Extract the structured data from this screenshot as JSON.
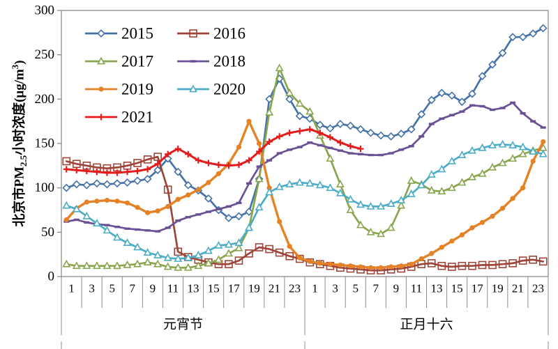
{
  "y_axis": {
    "title_parts": {
      "p1": "北京市PM",
      "sub": "2.5",
      "p2": "小时浓度(μg/m",
      "sup": "3",
      "p3": ")"
    },
    "ticks": [
      0,
      50,
      100,
      150,
      200,
      250,
      300
    ]
  },
  "x_axis": {
    "hour_tick_labels": [
      "1",
      "3",
      "5",
      "7",
      "9",
      "11",
      "13",
      "15",
      "17",
      "19",
      "21",
      "23"
    ],
    "day_labels": [
      "元宵节",
      "正月十六"
    ]
  },
  "legend": {
    "items": [
      {
        "label": "2015",
        "color": "#4572A7",
        "marker": "diamond"
      },
      {
        "label": "2016",
        "color": "#9E4438",
        "marker": "square"
      },
      {
        "label": "2017",
        "color": "#89A54E",
        "marker": "triangle"
      },
      {
        "label": "2018",
        "color": "#6A5195",
        "marker": "dash"
      },
      {
        "label": "2019",
        "color": "#E58225",
        "marker": "circle"
      },
      {
        "label": "2020",
        "color": "#4BACC6",
        "marker": "triangle"
      },
      {
        "label": "2021",
        "color": "#E31B1B",
        "marker": "plus"
      }
    ]
  },
  "chart_data": {
    "type": "line",
    "title": "",
    "ylabel": "北京市PM2.5小时浓度(μg/m³)",
    "ylim": [
      0,
      300
    ],
    "yticks": [
      0,
      50,
      100,
      150,
      200,
      250,
      300
    ],
    "grid": false,
    "legend_position": "upper-left-inside",
    "x_groups": [
      {
        "label": "元宵节",
        "hours": [
          1,
          2,
          3,
          4,
          5,
          6,
          7,
          8,
          9,
          10,
          11,
          12,
          13,
          14,
          15,
          16,
          17,
          18,
          19,
          20,
          21,
          22,
          23,
          24
        ]
      },
      {
        "label": "正月十六",
        "hours": [
          1,
          2,
          3,
          4,
          5,
          6,
          7,
          8,
          9,
          10,
          11,
          12,
          13,
          14,
          15,
          16,
          17,
          18,
          19,
          20,
          21,
          22,
          23,
          24
        ]
      }
    ],
    "series": [
      {
        "name": "2015",
        "color": "#4572A7",
        "marker": "diamond",
        "line_width": 2.7,
        "values": [
          100,
          104,
          103,
          105,
          104,
          105,
          106,
          108,
          110,
          120,
          133,
          118,
          103,
          97,
          88,
          75,
          66,
          68,
          73,
          110,
          200,
          223,
          200,
          181,
          178,
          171,
          167,
          172,
          170,
          166,
          162,
          159,
          158,
          161,
          166,
          183,
          199,
          207,
          204,
          197,
          206,
          226,
          239,
          252,
          270,
          270,
          274,
          280
        ]
      },
      {
        "name": "2016",
        "color": "#9E4438",
        "marker": "square",
        "line_width": 2.7,
        "values": [
          130,
          127,
          125,
          123,
          122,
          123,
          125,
          128,
          132,
          135,
          98,
          28,
          22,
          19,
          16,
          14,
          14,
          18,
          26,
          33,
          31,
          27,
          23,
          20,
          16,
          14,
          12,
          10,
          9,
          8,
          7,
          7,
          8,
          9,
          11,
          14,
          15,
          12,
          11,
          12,
          12,
          13,
          13,
          14,
          15,
          18,
          19,
          17
        ]
      },
      {
        "name": "2017",
        "color": "#89A54E",
        "marker": "triangle",
        "line_width": 2.7,
        "values": [
          14,
          12,
          12,
          12,
          12,
          12,
          13,
          14,
          16,
          14,
          11,
          10,
          10,
          12,
          15,
          19,
          26,
          32,
          55,
          110,
          185,
          235,
          207,
          195,
          186,
          159,
          133,
          104,
          75,
          58,
          50,
          48,
          55,
          80,
          108,
          104,
          97,
          96,
          100,
          106,
          112,
          116,
          123,
          128,
          133,
          138,
          142,
          145
        ]
      },
      {
        "name": "2018",
        "color": "#6A5195",
        "marker": "dash",
        "line_width": 2.7,
        "values": [
          62,
          64,
          61,
          59,
          58,
          56,
          54,
          53,
          52,
          51,
          55,
          63,
          67,
          70,
          73,
          76,
          79,
          83,
          105,
          124,
          131,
          139,
          143,
          146,
          151,
          148,
          145,
          142,
          139,
          138,
          137,
          137,
          139,
          143,
          147,
          158,
          172,
          178,
          182,
          186,
          193,
          192,
          188,
          190,
          196,
          184,
          175,
          168
        ]
      },
      {
        "name": "2019",
        "color": "#E58225",
        "marker": "circle",
        "line_width": 3.4,
        "values": [
          64,
          77,
          84,
          85,
          86,
          85,
          83,
          78,
          72,
          74,
          79,
          87,
          92,
          98,
          106,
          116,
          127,
          146,
          175,
          150,
          100,
          62,
          34,
          21,
          17,
          15,
          14,
          13,
          12,
          11,
          10,
          10,
          11,
          12,
          14,
          20,
          26,
          33,
          40,
          47,
          55,
          61,
          68,
          77,
          88,
          100,
          130,
          152
        ]
      },
      {
        "name": "2020",
        "color": "#4BACC6",
        "marker": "triangle",
        "line_width": 2.7,
        "values": [
          80,
          76,
          68,
          60,
          52,
          44,
          38,
          33,
          27,
          24,
          21,
          20,
          21,
          24,
          29,
          35,
          36,
          38,
          55,
          78,
          95,
          101,
          104,
          106,
          105,
          103,
          100,
          94,
          87,
          81,
          79,
          79,
          82,
          86,
          93,
          103,
          115,
          121,
          130,
          137,
          142,
          145,
          148,
          149,
          148,
          146,
          141,
          138
        ]
      },
      {
        "name": "2021",
        "color": "#E31B1B",
        "marker": "plus",
        "line_width": 3.0,
        "values": [
          121,
          120,
          119,
          118,
          117,
          117,
          118,
          119,
          121,
          127,
          138,
          144,
          138,
          131,
          128,
          126,
          125,
          126,
          131,
          141,
          152,
          158,
          162,
          164,
          166,
          162,
          157,
          151,
          147,
          144,
          null,
          null,
          null,
          null,
          null,
          null,
          null,
          null,
          null,
          null,
          null,
          null,
          null,
          null,
          null,
          null,
          null,
          null
        ]
      }
    ]
  },
  "frame_color": "#8C8C8C",
  "text_color": "#000000"
}
